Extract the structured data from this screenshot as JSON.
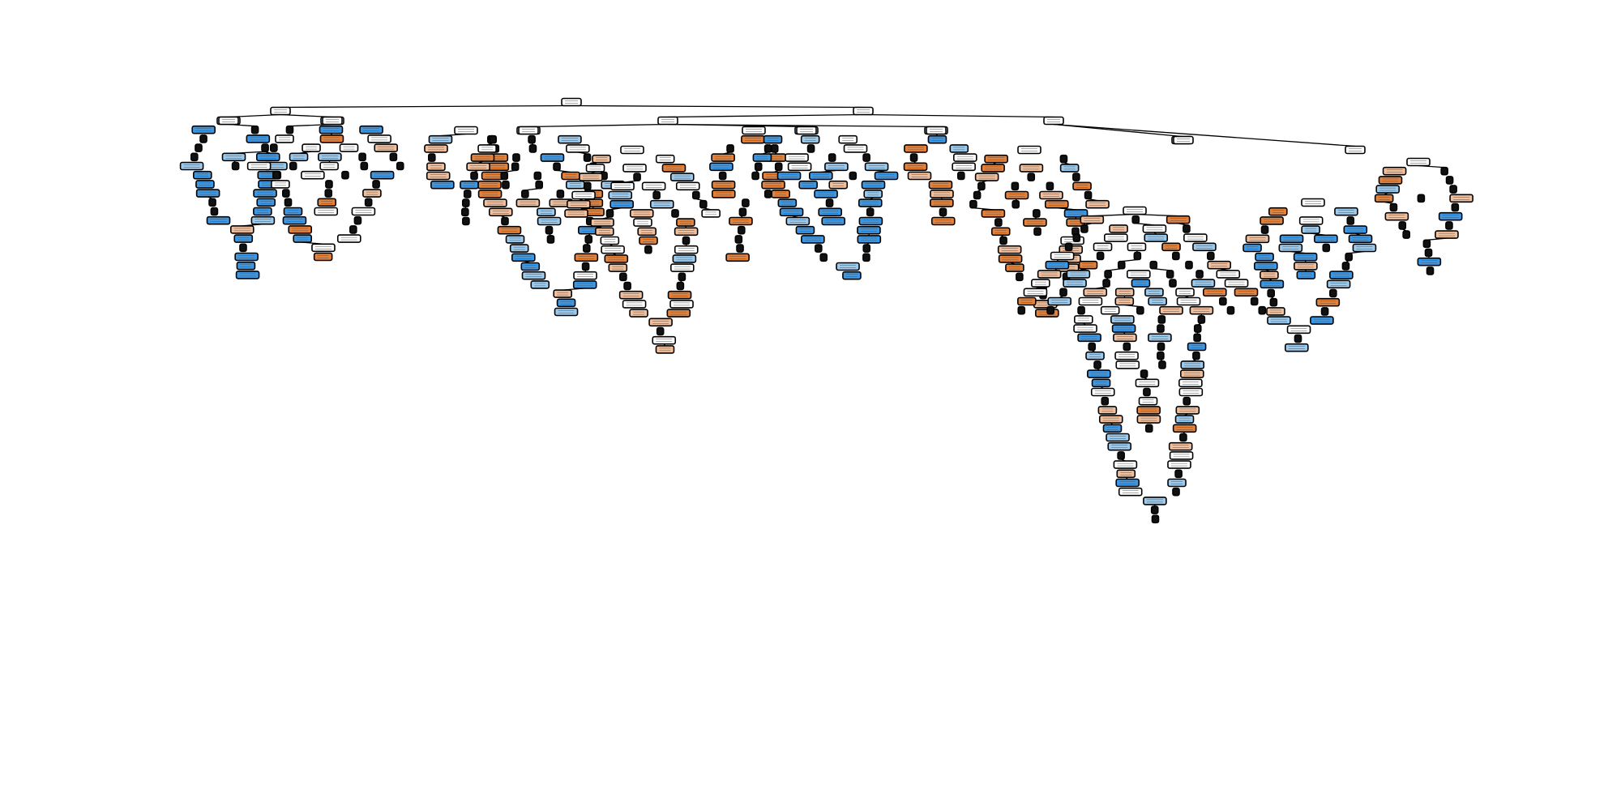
{
  "figure": {
    "type": "decision-tree-plot",
    "class_colors": {
      "class_0_strong": "#e58139",
      "class_0_light": "#f2c09c",
      "class_1_strong": "#3c98e5",
      "class_1_light": "#9ccbf0",
      "impure": "#ffffff"
    },
    "edge_color": "#000000",
    "node_border_color": "#000000"
  }
}
